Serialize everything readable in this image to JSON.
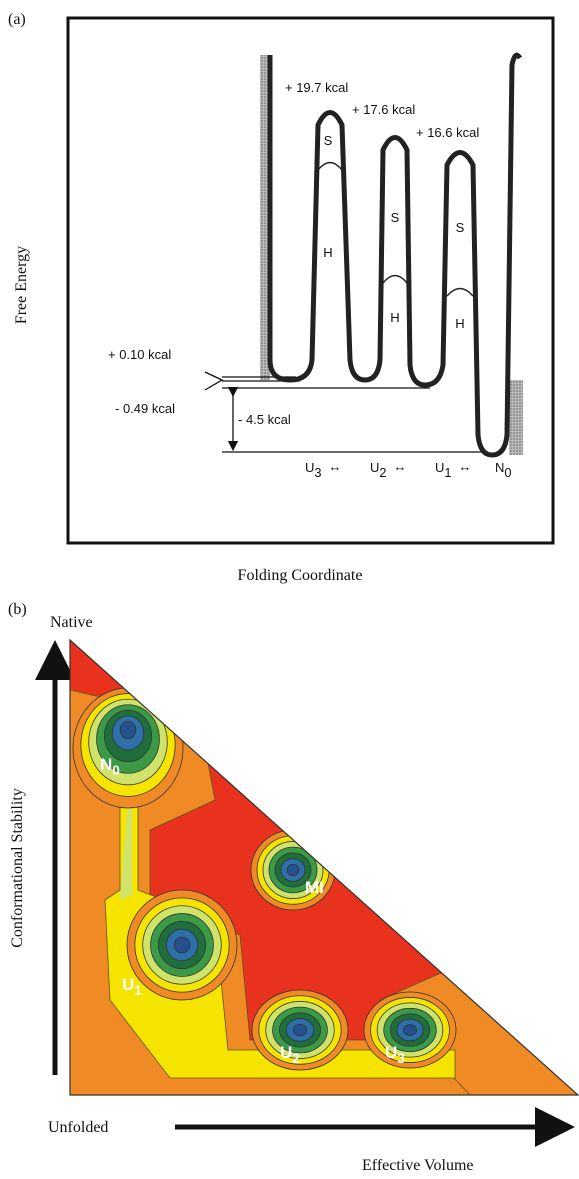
{
  "panel_a": {
    "label": "(a)",
    "y_axis": "Free Energy",
    "x_axis": "Folding Coordinate",
    "peaks": [
      {
        "energy": "+ 19.7 kcal",
        "upper": "S",
        "lower": "H"
      },
      {
        "energy": "+ 17.6 kcal",
        "upper": "S",
        "lower": "H"
      },
      {
        "energy": "+ 16.6 kcal",
        "upper": "S",
        "lower": "H"
      }
    ],
    "levels": [
      "+ 0.10 kcal",
      "- 0.49 kcal",
      "- 4.5 kcal"
    ],
    "states": [
      {
        "name": "U",
        "sub": "3"
      },
      {
        "name": "U",
        "sub": "2"
      },
      {
        "name": "U",
        "sub": "1"
      },
      {
        "name": "N",
        "sub": "0"
      }
    ],
    "connector": "↔"
  },
  "panel_b": {
    "label": "(b)",
    "top": "Native",
    "bottom": "Unfolded",
    "y_axis": "Conformational Stability",
    "x_axis": "Effective Volume",
    "basins": [
      {
        "name": "N",
        "sub": "0"
      },
      {
        "name": "U",
        "sub": "1"
      },
      {
        "name": "MI"
      },
      {
        "name": "U",
        "sub": "2"
      },
      {
        "name": "U",
        "sub": "3"
      }
    ]
  }
}
